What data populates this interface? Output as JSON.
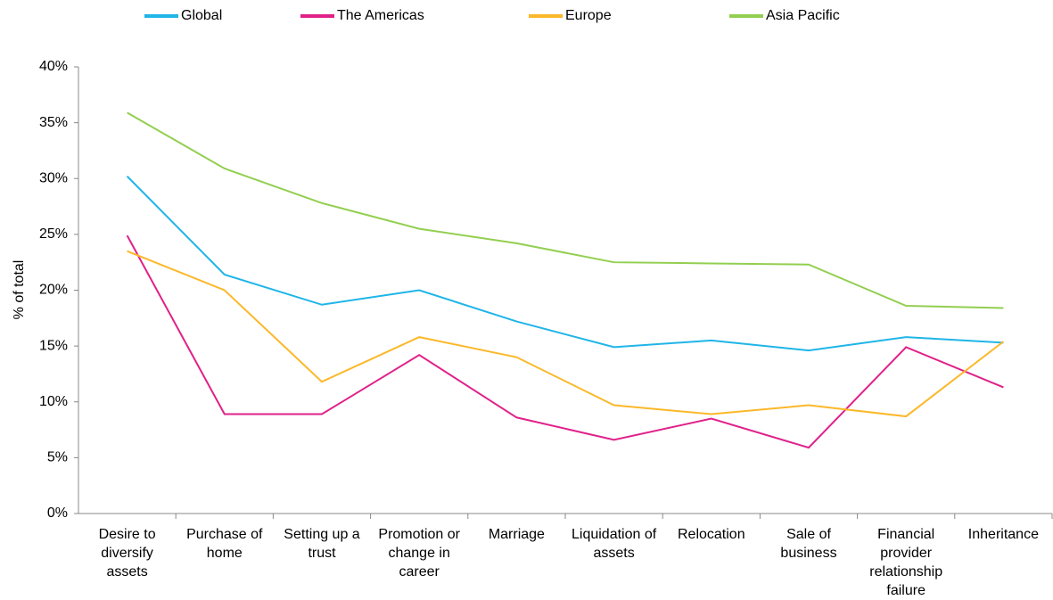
{
  "chart_data": {
    "type": "line",
    "ylabel": "% of total",
    "categories": [
      "Desire to diversify assets",
      "Purchase of home",
      "Setting up a trust",
      "Promotion or change in career",
      "Marriage",
      "Liquidation of assets",
      "Relocation",
      "Sale of business",
      "Financial provider relationship failure",
      "Inheritance"
    ],
    "series": [
      {
        "name": "Global",
        "color": "#1fb5e8",
        "values": [
          30.2,
          21.4,
          18.7,
          20.0,
          17.2,
          14.9,
          15.5,
          14.6,
          15.8,
          15.3
        ]
      },
      {
        "name": "The Americas",
        "color": "#e0218a",
        "values": [
          24.9,
          8.9,
          8.9,
          14.2,
          8.6,
          6.6,
          8.5,
          5.9,
          14.9,
          11.3
        ]
      },
      {
        "name": "Europe",
        "color": "#fbb829",
        "values": [
          23.5,
          20.0,
          11.8,
          15.8,
          14.0,
          9.7,
          8.9,
          9.7,
          8.7,
          15.4
        ]
      },
      {
        "name": "Asia Pacific",
        "color": "#92cf50",
        "values": [
          35.9,
          30.9,
          27.8,
          25.5,
          24.2,
          22.5,
          22.4,
          22.3,
          18.6,
          18.4
        ]
      }
    ],
    "ylim": [
      0,
      40
    ],
    "yticks": [
      {
        "value": 0,
        "label": "0%"
      },
      {
        "value": 5,
        "label": "5%"
      },
      {
        "value": 10,
        "label": "10%"
      },
      {
        "value": 15,
        "label": "15%"
      },
      {
        "value": 20,
        "label": "20%"
      },
      {
        "value": 25,
        "label": "25%"
      },
      {
        "value": 30,
        "label": "30%"
      },
      {
        "value": 35,
        "label": "35%"
      },
      {
        "value": 40,
        "label": "40%"
      }
    ],
    "legend": "top",
    "grid": false
  }
}
